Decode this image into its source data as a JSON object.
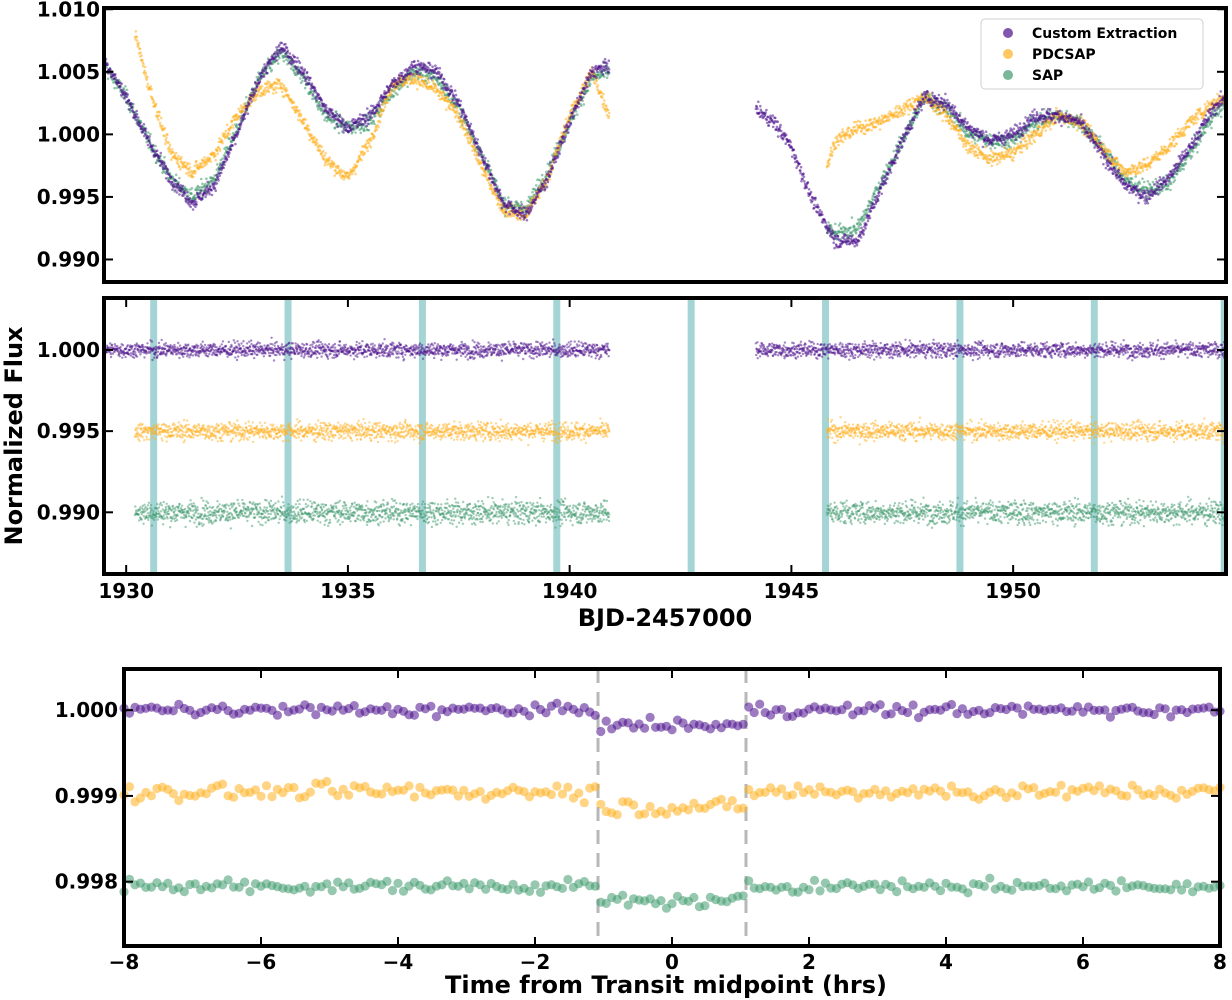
{
  "colors": {
    "custom": "#4b0f8c",
    "pdcsap": "#ffb020",
    "sap": "#3f9a6e",
    "transit_band": "#8ec9c9",
    "dash": "#b8b8b8"
  },
  "shared": {
    "ylabel": "Normalized Flux",
    "xlabel_top": "BJD-2457000",
    "xlabel_bottom": "Time from Transit midpoint (hrs)"
  },
  "chart_data": [
    {
      "id": "raw",
      "type": "scatter",
      "title": "",
      "xlim": [
        1929.5,
        1954.8
      ],
      "ylim": [
        0.9882,
        1.0101
      ],
      "yticks": [
        {
          "v": 1.01,
          "label": "1.010"
        },
        {
          "v": 1.005,
          "label": "1.005"
        },
        {
          "v": 1.0,
          "label": "1.000"
        },
        {
          "v": 0.995,
          "label": "0.995"
        },
        {
          "v": 0.99,
          "label": "0.990"
        }
      ],
      "legend": {
        "position": "top-right",
        "entries": [
          {
            "label": "Custom Extraction",
            "color_key": "custom"
          },
          {
            "label": "PDCSAP",
            "color_key": "pdcsap"
          },
          {
            "label": "SAP",
            "color_key": "sap"
          }
        ]
      },
      "series": [
        {
          "name": "Custom Extraction",
          "color_key": "custom",
          "noise": 0.0007,
          "x": [
            1929.5,
            1930.0,
            1930.5,
            1931.0,
            1931.5,
            1932.0,
            1932.5,
            1933.0,
            1933.5,
            1934.0,
            1934.5,
            1935.0,
            1935.5,
            1936.0,
            1936.5,
            1937.0,
            1937.5,
            1938.0,
            1938.5,
            1939.0,
            1939.5,
            1940.0,
            1940.5,
            1940.9,
            1944.2,
            1944.6,
            1945.0,
            1945.5,
            1946.0,
            1946.5,
            1947.0,
            1947.5,
            1948.0,
            1948.5,
            1949.0,
            1949.5,
            1950.0,
            1950.5,
            1951.0,
            1951.5,
            1952.0,
            1952.5,
            1953.0,
            1953.5,
            1954.0,
            1954.5,
            1954.8
          ],
          "y": [
            1.006,
            1.003,
            0.9995,
            0.9965,
            0.9945,
            0.996,
            1.0,
            1.0045,
            1.007,
            1.005,
            1.002,
            1.0005,
            1.0015,
            1.004,
            1.0055,
            1.005,
            1.0025,
            0.9985,
            0.9945,
            0.9935,
            0.9965,
            1.001,
            1.005,
            1.0055,
            1.002,
            1.001,
            0.999,
            0.9945,
            0.9915,
            0.9915,
            0.9955,
            0.9995,
            1.003,
            1.0025,
            1.0005,
            0.9995,
            1.0,
            1.0015,
            1.0015,
            1.001,
            0.9985,
            0.996,
            0.995,
            0.9965,
            0.999,
            1.002,
            1.003
          ]
        },
        {
          "name": "PDCSAP",
          "color_key": "pdcsap",
          "noise": 0.0007,
          "x": [
            1930.2,
            1930.5,
            1931.0,
            1931.5,
            1932.0,
            1932.5,
            1933.0,
            1933.5,
            1934.0,
            1934.5,
            1935.0,
            1935.5,
            1936.0,
            1936.5,
            1937.0,
            1937.5,
            1938.0,
            1938.5,
            1939.0,
            1939.5,
            1940.0,
            1940.5,
            1940.9,
            1945.8,
            1946.0,
            1946.5,
            1947.0,
            1947.5,
            1948.0,
            1948.5,
            1949.0,
            1949.5,
            1950.0,
            1950.5,
            1951.0,
            1951.5,
            1952.0,
            1952.5,
            1953.0,
            1953.5,
            1954.0,
            1954.5,
            1954.8
          ],
          "y": [
            1.008,
            1.004,
            0.9985,
            0.997,
            0.9985,
            1.0015,
            1.0035,
            1.004,
            1.001,
            0.998,
            0.9965,
            0.9995,
            1.004,
            1.0045,
            1.0035,
            1.0015,
            0.9975,
            0.994,
            0.9935,
            0.9965,
            1.0015,
            1.005,
            1.0015,
            0.9975,
            0.9995,
            1.0005,
            1.001,
            1.002,
            1.003,
            1.0015,
            0.999,
            0.998,
            0.9985,
            1.0,
            1.0015,
            1.001,
            0.999,
            0.997,
            0.9975,
            0.999,
            1.001,
            1.0025,
            1.003
          ]
        },
        {
          "name": "SAP",
          "color_key": "sap",
          "noise": 0.0008,
          "x": [
            1929.5,
            1930.0,
            1930.5,
            1931.0,
            1931.5,
            1932.0,
            1932.5,
            1933.0,
            1933.5,
            1934.0,
            1934.5,
            1935.0,
            1935.5,
            1936.0,
            1936.5,
            1937.0,
            1937.5,
            1938.0,
            1938.5,
            1939.0,
            1939.5,
            1940.0,
            1940.5,
            1940.9,
            1945.8,
            1946.0,
            1946.5,
            1947.0,
            1947.5,
            1948.0,
            1948.5,
            1949.0,
            1949.5,
            1950.0,
            1950.5,
            1951.0,
            1951.5,
            1952.0,
            1952.5,
            1953.0,
            1953.5,
            1954.0,
            1954.5,
            1954.8
          ],
          "y": [
            1.0055,
            1.003,
            0.9995,
            0.9965,
            0.995,
            0.9965,
            1.0005,
            1.0045,
            1.0065,
            1.0045,
            1.0015,
            1.0005,
            1.001,
            1.0035,
            1.005,
            1.0045,
            1.002,
            0.9985,
            0.9945,
            0.994,
            0.997,
            1.001,
            1.0045,
            1.005,
            0.9925,
            0.992,
            0.9925,
            0.996,
            0.9995,
            1.003,
            1.002,
            1.0,
            0.9995,
            0.9995,
            1.001,
            1.0015,
            1.001,
            0.999,
            0.9965,
            0.9955,
            0.996,
            0.9985,
            1.0015,
            1.0025
          ]
        }
      ]
    },
    {
      "id": "detrended",
      "type": "scatter",
      "xlim": [
        1929.5,
        1954.8
      ],
      "ylim": [
        0.9862,
        1.0032
      ],
      "yticks": [
        {
          "v": 1.0,
          "label": "1.000"
        },
        {
          "v": 0.995,
          "label": "0.995"
        },
        {
          "v": 0.99,
          "label": "0.990"
        }
      ],
      "xticks": [
        {
          "v": 1930,
          "label": "1930"
        },
        {
          "v": 1935,
          "label": "1935"
        },
        {
          "v": 1940,
          "label": "1940"
        },
        {
          "v": 1945,
          "label": "1945"
        },
        {
          "v": 1950,
          "label": "1950"
        }
      ],
      "transit_times": [
        1930.62,
        1933.65,
        1936.68,
        1939.71,
        1942.74,
        1945.77,
        1948.8,
        1951.83,
        1954.76
      ],
      "series": [
        {
          "name": "Custom Extraction",
          "color_key": "custom",
          "offset": 1.0,
          "noise": 0.0006,
          "ranges": [
            [
              1929.5,
              1940.9
            ],
            [
              1944.2,
              1954.8
            ]
          ]
        },
        {
          "name": "PDCSAP",
          "color_key": "pdcsap",
          "offset": 0.995,
          "noise": 0.0007,
          "ranges": [
            [
              1930.2,
              1940.9
            ],
            [
              1945.8,
              1954.8
            ]
          ]
        },
        {
          "name": "SAP",
          "color_key": "sap",
          "offset": 0.99,
          "noise": 0.0009,
          "ranges": [
            [
              1930.2,
              1940.9
            ],
            [
              1945.8,
              1954.8
            ]
          ]
        }
      ]
    },
    {
      "id": "folded",
      "type": "scatter",
      "xlim": [
        -8,
        8
      ],
      "ylim": [
        0.99725,
        1.00048
      ],
      "xticks": [
        {
          "v": -8,
          "label": "−8"
        },
        {
          "v": -6,
          "label": "−6"
        },
        {
          "v": -4,
          "label": "−4"
        },
        {
          "v": -2,
          "label": "−2"
        },
        {
          "v": 0,
          "label": "0"
        },
        {
          "v": 2,
          "label": "2"
        },
        {
          "v": 4,
          "label": "4"
        },
        {
          "v": 6,
          "label": "6"
        },
        {
          "v": 8,
          "label": "8"
        }
      ],
      "yticks": [
        {
          "v": 1.0,
          "label": "1.000"
        },
        {
          "v": 0.999,
          "label": "0.999"
        },
        {
          "v": 0.998,
          "label": "0.998"
        }
      ],
      "transit_window": [
        -1.08,
        1.08
      ],
      "transit_depth": 0.00018,
      "bin_step": 0.08,
      "series": [
        {
          "name": "Custom Extraction",
          "color_key": "custom",
          "baseline": 1.0,
          "scatter": 9e-05
        },
        {
          "name": "PDCSAP",
          "color_key": "pdcsap",
          "baseline": 0.99905,
          "scatter": 0.00012
        },
        {
          "name": "SAP",
          "color_key": "sap",
          "baseline": 0.99795,
          "scatter": 9e-05
        }
      ]
    }
  ]
}
